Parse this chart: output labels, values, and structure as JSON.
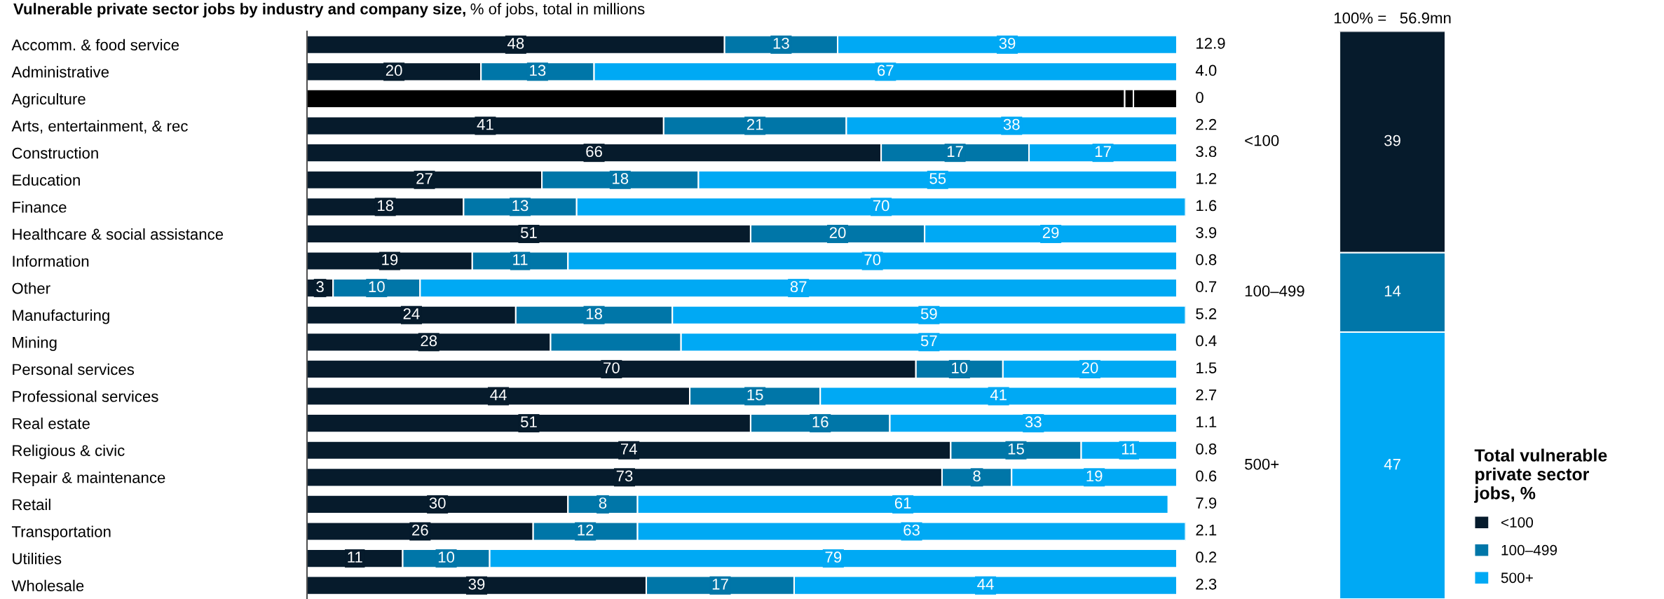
{
  "chart_data": [
    {
      "type": "bar",
      "orientation": "horizontal",
      "stacked": true,
      "title": "Vulnerable private sector jobs by industry and company size,",
      "subtitle": "% of jobs, total in millions",
      "tick_labels": "y",
      "legend": false,
      "xlim": [
        0,
        101
      ],
      "categories": [
        "Accomm. & food service",
        "Administrative",
        "Agriculture",
        "Arts, entertainment, & rec",
        "Construction",
        "Education",
        "Finance",
        "Healthcare & social assistance",
        "Information",
        "Other",
        "Manufacturing",
        "Mining",
        "Personal services",
        "Professional services",
        "Real estate",
        "Religious & civic",
        "Repair & maintenance",
        "Retail",
        "Transportation",
        "Utilities",
        "Wholesale"
      ],
      "series": [
        {
          "color": "#061b2c",
          "colors": [
            "#061b2c",
            "#061b2c",
            "#000000",
            "#061b2c",
            "#061b2c",
            "#061b2c",
            "#061b2c",
            "#061b2c",
            "#061b2c",
            "#061b2c",
            "#061b2c",
            "#061b2c",
            "#061b2c",
            "#061b2c",
            "#061b2c",
            "#061b2c",
            "#061b2c",
            "#061b2c",
            "#061b2c",
            "#061b2c",
            "#061b2c"
          ],
          "values": [
            48,
            20,
            94,
            41,
            66,
            27,
            18,
            51,
            19,
            3,
            24,
            28,
            70,
            44,
            51,
            74,
            73,
            30,
            26,
            11,
            39
          ],
          "value_labels": [
            "48",
            "20",
            null,
            "41",
            "66",
            "27",
            "18",
            "51",
            "19",
            "3",
            "24",
            "28",
            "70",
            "44",
            "51",
            "74",
            "73",
            "30",
            "26",
            "11",
            "39"
          ]
        },
        {
          "color": "#0076a8",
          "colors": [
            "#0076a8",
            "#0076a8",
            "#000000",
            "#0076a8",
            "#0076a8",
            "#0076a8",
            "#0076a8",
            "#0076a8",
            "#0076a8",
            "#0076a8",
            "#0076a8",
            "#0076a8",
            "#0076a8",
            "#0076a8",
            "#0076a8",
            "#0076a8",
            "#0076a8",
            "#0076a8",
            "#0076a8",
            "#0076a8",
            "#0076a8"
          ],
          "values": [
            13,
            13,
            1,
            21,
            17,
            18,
            13,
            20,
            11,
            10,
            18,
            15,
            10,
            15,
            16,
            15,
            8,
            8,
            12,
            10,
            17
          ],
          "value_labels": [
            "13",
            "13",
            null,
            "21",
            "17",
            "18",
            "13",
            "20",
            "11",
            "10",
            "18",
            null,
            "10",
            "15",
            "16",
            "15",
            "8",
            "8",
            "12",
            "10",
            "17"
          ]
        },
        {
          "color": "#00a9f4",
          "colors": [
            "#00a9f4",
            "#00a9f4",
            "#000000",
            "#00a9f4",
            "#00a9f4",
            "#00a9f4",
            "#00a9f4",
            "#00a9f4",
            "#00a9f4",
            "#00a9f4",
            "#00a9f4",
            "#00a9f4",
            "#00a9f4",
            "#00a9f4",
            "#00a9f4",
            "#00a9f4",
            "#00a9f4",
            "#00a9f4",
            "#00a9f4",
            "#00a9f4",
            "#00a9f4"
          ],
          "values": [
            39,
            67,
            5,
            38,
            17,
            55,
            70,
            29,
            70,
            87,
            59,
            57,
            20,
            41,
            33,
            11,
            19,
            61,
            63,
            79,
            44
          ],
          "value_labels": [
            "39",
            "67",
            null,
            "38",
            "17",
            "55",
            "70",
            "29",
            "70",
            "87",
            "59",
            "57",
            "20",
            "41",
            "33",
            "11",
            "19",
            "61",
            "63",
            "79",
            "44"
          ]
        }
      ],
      "annotations": [
        "12.9",
        "4.0",
        "0",
        "2.2",
        "3.8",
        "1.2",
        "1.6",
        "3.9",
        "0.8",
        "0.7",
        "5.2",
        "0.4",
        "1.5",
        "2.7",
        "1.1",
        "0.8",
        "0.6",
        "7.9",
        "2.1",
        "0.2",
        "2.3"
      ]
    },
    {
      "type": "bar",
      "stacked": true,
      "title": "100% =   56.9mn",
      "categories": [
        null
      ],
      "ylim": [
        0,
        100
      ],
      "tick_labels": false,
      "data_labels": true,
      "legend": "bottom right",
      "legend_title": "Total vulnerable private sector jobs, %",
      "series": [
        {
          "name": "500+",
          "color": "#00a9f4",
          "values": [
            47
          ]
        },
        {
          "name": "100–499",
          "color": "#0076a8",
          "values": [
            14
          ]
        },
        {
          "name": "<100",
          "color": "#061b2c",
          "values": [
            39
          ]
        }
      ]
    }
  ]
}
